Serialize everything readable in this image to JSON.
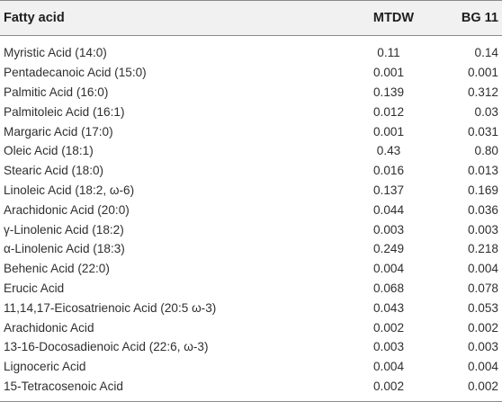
{
  "table": {
    "headers": {
      "name": "Fatty acid",
      "mtdw": "MTDW",
      "bg11": "BG 11"
    },
    "rows": [
      {
        "name": "Myristic Acid (14:0)",
        "mtdw": "0.11",
        "bg11": "0.14"
      },
      {
        "name": "Pentadecanoic Acid (15:0)",
        "mtdw": "0.001",
        "bg11": "0.001"
      },
      {
        "name": "Palmitic Acid (16:0)",
        "mtdw": "0.139",
        "bg11": "0.312"
      },
      {
        "name": "Palmitoleic Acid (16:1)",
        "mtdw": "0.012",
        "bg11": "0.03"
      },
      {
        "name": "Margaric Acid (17:0)",
        "mtdw": "0.001",
        "bg11": "0.031"
      },
      {
        "name": "Oleic Acid (18:1)",
        "mtdw": "0.43",
        "bg11": "0.80"
      },
      {
        "name": "Stearic Acid (18:0)",
        "mtdw": "0.016",
        "bg11": "0.013"
      },
      {
        "name": "Linoleic Acid (18:2, ω-6)",
        "mtdw": "0.137",
        "bg11": "0.169"
      },
      {
        "name": "Arachidonic Acid (20:0)",
        "mtdw": "0.044",
        "bg11": "0.036"
      },
      {
        "name": "γ-Linolenic Acid (18:2)",
        "mtdw": "0.003",
        "bg11": "0.003"
      },
      {
        "name": "α-Linolenic Acid (18:3)",
        "mtdw": "0.249",
        "bg11": "0.218"
      },
      {
        "name": "Behenic Acid (22:0)",
        "mtdw": "0.004",
        "bg11": "0.004"
      },
      {
        "name": "Erucic Acid",
        "mtdw": "0.068",
        "bg11": "0.078"
      },
      {
        "name": "11,14,17-Eicosatrienoic Acid (20:5 ω-3)",
        "mtdw": "0.043",
        "bg11": "0.053"
      },
      {
        "name": "Arachidonic Acid",
        "mtdw": "0.002",
        "bg11": "0.002"
      },
      {
        "name": "13-16-Docosadienoic Acid (22:6, ω-3)",
        "mtdw": "0.003",
        "bg11": "0.003"
      },
      {
        "name": "Lignoceric Acid",
        "mtdw": "0.004",
        "bg11": "0.004"
      },
      {
        "name": "15-Tetracosenoic Acid",
        "mtdw": "0.002",
        "bg11": "0.002"
      }
    ]
  }
}
